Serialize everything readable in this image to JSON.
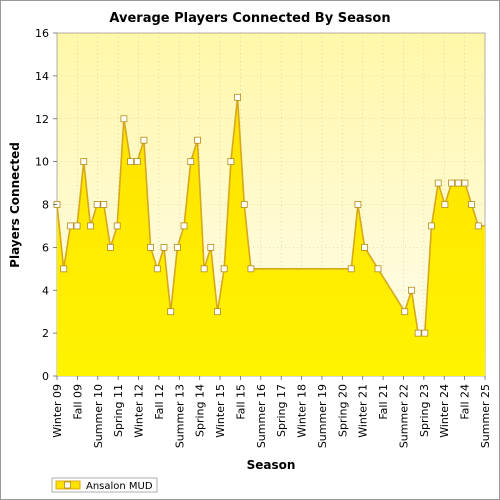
{
  "chart_data": {
    "type": "area",
    "title": "Average Players Connected By Season",
    "xlabel": "Season",
    "ylabel": "Players Connected",
    "ylim": [
      0,
      16
    ],
    "yticks": [
      0,
      2,
      4,
      6,
      8,
      10,
      12,
      14,
      16
    ],
    "grid": true,
    "legend_position": "bottom-left",
    "colors": {
      "fill_top": "#fffb00",
      "fill_bottom": "#ffd400",
      "line": "#d7a81a",
      "marker_fill": "#ffffff",
      "plot_bg_top": "#fff7a8",
      "plot_bg_bottom": "#fffdf0"
    },
    "x_tick_labels": [
      "Winter 09",
      "Fall 09",
      "Summer 10",
      "Spring 11",
      "Winter 12",
      "Fall 12",
      "Summer 13",
      "Spring 14",
      "Winter 15",
      "Fall 15",
      "Summer 16",
      "Spring 17",
      "Winter 18",
      "Summer 19",
      "Spring 20",
      "Winter 21",
      "Fall 21",
      "Summer 22",
      "Spring 23",
      "Winter 24",
      "Fall 24",
      "Summer 25"
    ],
    "series": [
      {
        "name": "Ansalon MUD",
        "x": [
          0,
          1,
          2,
          3,
          4,
          5,
          6,
          7,
          8,
          9,
          10,
          11,
          12,
          13,
          14,
          15,
          16,
          17,
          18,
          19,
          20,
          21,
          22,
          23,
          24,
          25,
          26,
          27,
          28,
          29,
          30,
          31,
          32,
          33,
          34,
          35,
          36,
          37,
          38,
          39,
          40,
          41,
          42,
          43,
          44,
          45,
          46,
          47,
          48,
          49,
          50,
          51,
          52,
          53,
          54,
          55,
          56,
          57,
          58,
          59,
          60,
          61,
          62,
          63,
          64
        ],
        "values": [
          8,
          5,
          7,
          7,
          10,
          7,
          8,
          8,
          6,
          7,
          12,
          10,
          10,
          11,
          6,
          5,
          6,
          3,
          6,
          7,
          10,
          11,
          5,
          6,
          3,
          5,
          10,
          13,
          8,
          5,
          5,
          5,
          5,
          5,
          5,
          5,
          5,
          5,
          5,
          5,
          5,
          5,
          5,
          5,
          5,
          8,
          6,
          null,
          5,
          null,
          null,
          null,
          3,
          4,
          2,
          2,
          7,
          9,
          8,
          9,
          9,
          9,
          8,
          7,
          null
        ],
        "markers": [
          true,
          true,
          true,
          true,
          true,
          true,
          true,
          true,
          true,
          true,
          true,
          true,
          true,
          true,
          true,
          true,
          true,
          true,
          true,
          true,
          true,
          true,
          true,
          true,
          true,
          true,
          true,
          true,
          true,
          true,
          false,
          false,
          false,
          false,
          false,
          false,
          false,
          false,
          false,
          false,
          false,
          false,
          false,
          false,
          true,
          true,
          true,
          false,
          true,
          false,
          false,
          false,
          true,
          true,
          true,
          true,
          true,
          true,
          true,
          true,
          true,
          true,
          true,
          true,
          false
        ]
      }
    ]
  }
}
